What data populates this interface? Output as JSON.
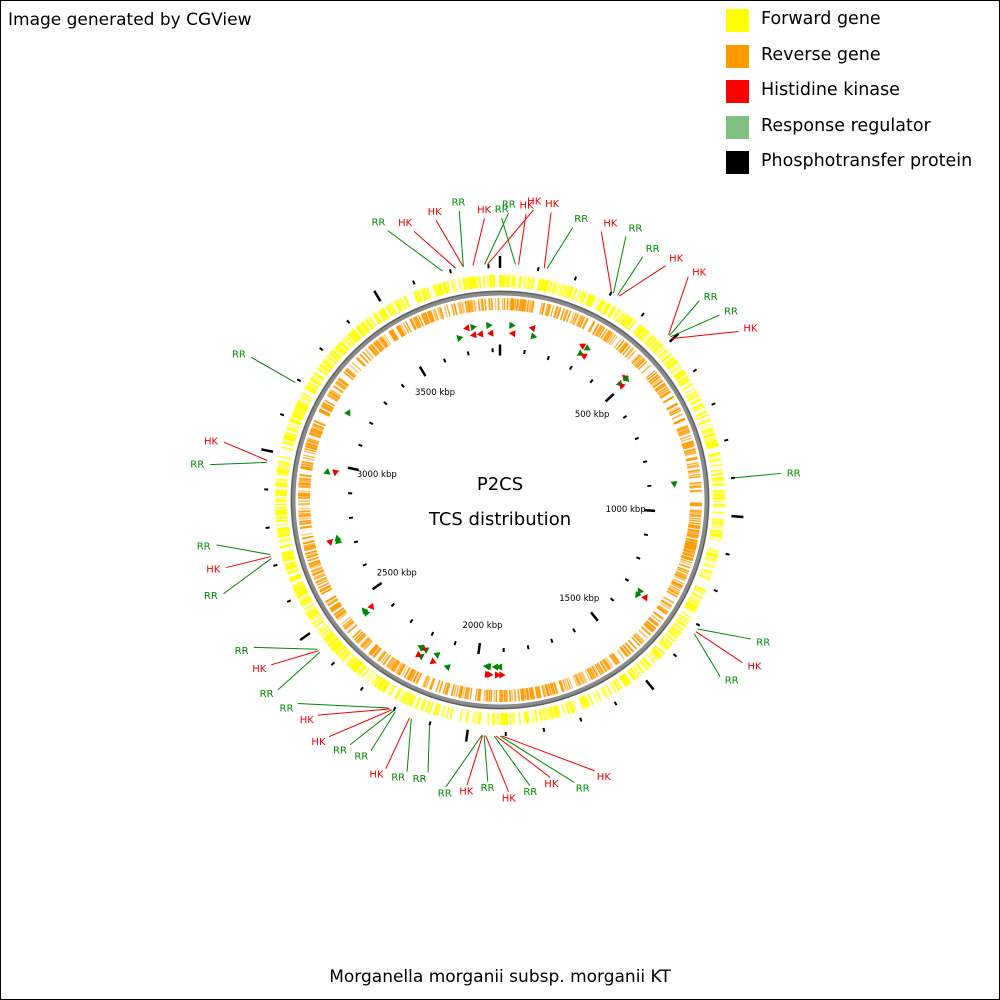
{
  "credit": "Image generated by CGView",
  "legend": [
    {
      "label": "Forward gene",
      "color": "#FFFF00"
    },
    {
      "label": "Reverse gene",
      "color": "#FF9900"
    },
    {
      "label": "Histidine kinase",
      "color": "#FF0000"
    },
    {
      "label": "Response regulator",
      "color": "#7FBF7F"
    },
    {
      "label": "Phosphotransfer protein",
      "color": "#000000"
    }
  ],
  "center": {
    "line1": "P2CS",
    "line2": "TCS distribution"
  },
  "organism": "Morganella morganii subsp. morganii KT",
  "map": {
    "genome_kbp": 3830,
    "tick_labels": [
      {
        "text": "500 kbp",
        "kbp": 500
      },
      {
        "text": "1000 kbp",
        "kbp": 1000
      },
      {
        "text": "1500 kbp",
        "kbp": 1500
      },
      {
        "text": "2000 kbp",
        "kbp": 2000
      },
      {
        "text": "2500 kbp",
        "kbp": 2500
      },
      {
        "text": "3000 kbp",
        "kbp": 3000
      },
      {
        "text": "3500 kbp",
        "kbp": 3500
      }
    ],
    "features": [
      {
        "label": "HK",
        "type": "HK",
        "kbp": 3715,
        "strand": "-"
      },
      {
        "label": "RR",
        "type": "RR",
        "kbp": 3680,
        "strand": "+"
      },
      {
        "label": "HK",
        "type": "HK",
        "kbp": 3735,
        "strand": "-"
      },
      {
        "label": "RR",
        "type": "RR",
        "kbp": 3735,
        "strand": "+"
      },
      {
        "label": "HK",
        "type": "HK",
        "kbp": 3760,
        "strand": "-"
      },
      {
        "label": "RR",
        "type": "RR",
        "kbp": 3790,
        "strand": "+"
      },
      {
        "label": "HK",
        "type": "HK",
        "kbp": 3798,
        "strand": "-"
      },
      {
        "label": "RR",
        "type": "RR",
        "kbp": 40,
        "strand": "+"
      },
      {
        "label": "HK",
        "type": "HK",
        "kbp": 48,
        "strand": "-"
      },
      {
        "label": "HK",
        "type": "HK",
        "kbp": 115,
        "strand": "-"
      },
      {
        "label": "RR",
        "type": "RR",
        "kbp": 122,
        "strand": "+"
      },
      {
        "label": "HK",
        "type": "HK",
        "kbp": 300,
        "strand": "-"
      },
      {
        "label": "RR",
        "type": "RR",
        "kbp": 306,
        "strand": "+"
      },
      {
        "label": "RR",
        "type": "RR",
        "kbp": 318,
        "strand": "+"
      },
      {
        "label": "HK",
        "type": "HK",
        "kbp": 322,
        "strand": "-"
      },
      {
        "label": "HK",
        "type": "HK",
        "kbp": 485,
        "strand": "-"
      },
      {
        "label": "RR",
        "type": "RR",
        "kbp": 488,
        "strand": "+"
      },
      {
        "label": "RR",
        "type": "RR",
        "kbp": 492,
        "strand": "+"
      },
      {
        "label": "HK",
        "type": "HK",
        "kbp": 498,
        "strand": "-"
      },
      {
        "label": "RR",
        "type": "RR",
        "kbp": 900,
        "strand": "+"
      },
      {
        "label": "RR",
        "type": "RR",
        "kbp": 1310,
        "strand": "+"
      },
      {
        "label": "HK",
        "type": "HK",
        "kbp": 1318,
        "strand": "-"
      },
      {
        "label": "RR",
        "type": "RR",
        "kbp": 1325,
        "strand": "+"
      },
      {
        "label": "HK",
        "type": "HK",
        "kbp": 1910,
        "strand": "-"
      },
      {
        "label": "RR",
        "type": "RR",
        "kbp": 1915,
        "strand": "+"
      },
      {
        "label": "HK",
        "type": "HK",
        "kbp": 1925,
        "strand": "-"
      },
      {
        "label": "RR",
        "type": "RR",
        "kbp": 1930,
        "strand": "+"
      },
      {
        "label": "HK",
        "type": "HK",
        "kbp": 1952,
        "strand": "-"
      },
      {
        "label": "RR",
        "type": "RR",
        "kbp": 1956,
        "strand": "+"
      },
      {
        "label": "HK",
        "type": "HK",
        "kbp": 1960,
        "strand": "-"
      },
      {
        "label": "RR",
        "type": "RR",
        "kbp": 1962,
        "strand": "+"
      },
      {
        "label": "RR",
        "type": "RR",
        "kbp": 2100,
        "strand": "+"
      },
      {
        "label": "RR",
        "type": "RR",
        "kbp": 2150,
        "strand": "+"
      },
      {
        "label": "HK",
        "type": "HK",
        "kbp": 2155,
        "strand": "-"
      },
      {
        "label": "RR",
        "type": "RR",
        "kbp": 2195,
        "strand": "+"
      },
      {
        "label": "RR",
        "type": "RR",
        "kbp": 2200,
        "strand": "+"
      },
      {
        "label": "HK",
        "type": "HK",
        "kbp": 2205,
        "strand": "-"
      },
      {
        "label": "HK",
        "type": "HK",
        "kbp": 2210,
        "strand": "-"
      },
      {
        "label": "RR",
        "type": "RR",
        "kbp": 2215,
        "strand": "+"
      },
      {
        "label": "RR",
        "type": "RR",
        "kbp": 2445,
        "strand": "+"
      },
      {
        "label": "HK",
        "type": "HK",
        "kbp": 2450,
        "strand": "-"
      },
      {
        "label": "RR",
        "type": "RR",
        "kbp": 2455,
        "strand": "+"
      },
      {
        "label": "RR",
        "type": "RR",
        "kbp": 2720,
        "strand": "+"
      },
      {
        "label": "HK",
        "type": "HK",
        "kbp": 2725,
        "strand": "-"
      },
      {
        "label": "RR",
        "type": "RR",
        "kbp": 2730,
        "strand": "+"
      },
      {
        "label": "RR",
        "type": "RR",
        "kbp": 2970,
        "strand": "+"
      },
      {
        "label": "HK",
        "type": "HK",
        "kbp": 2975,
        "strand": "-"
      },
      {
        "label": "RR",
        "type": "RR",
        "kbp": 3190,
        "strand": "+"
      }
    ]
  }
}
